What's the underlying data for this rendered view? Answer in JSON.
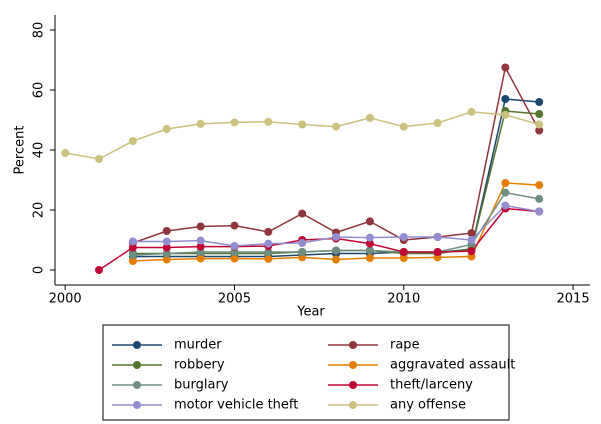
{
  "chart_data": {
    "type": "line",
    "x_label": "Year",
    "y_label": "Percent",
    "x": [
      2000,
      2001,
      2002,
      2003,
      2004,
      2005,
      2006,
      2007,
      2008,
      2009,
      2010,
      2011,
      2012,
      2013,
      2014
    ],
    "xlim": [
      1999.7,
      2015.5
    ],
    "xticks": [
      2000,
      2005,
      2010,
      2015
    ],
    "ylim": [
      -5,
      85
    ],
    "yticks": [
      0,
      20,
      40,
      60,
      80
    ],
    "grid": false,
    "legend": "bottom",
    "series": [
      {
        "name": "murder",
        "color": "#1a476f",
        "values": [
          null,
          null,
          4.5,
          4.5,
          4.5,
          4.5,
          4.5,
          5,
          5.5,
          5.5,
          6,
          5.8,
          7,
          57,
          56
        ]
      },
      {
        "name": "rape",
        "color": "#90353b",
        "values": [
          null,
          null,
          9,
          13,
          14.5,
          14.8,
          12.7,
          18.8,
          12.5,
          16.2,
          10,
          11,
          12.3,
          67.5,
          46.5
        ]
      },
      {
        "name": "robbery",
        "color": "#55752f",
        "values": [
          null,
          null,
          5.5,
          5.5,
          5.5,
          5.5,
          5.5,
          6,
          6.5,
          6.5,
          5.5,
          5.5,
          7,
          53,
          52
        ]
      },
      {
        "name": "aggravated assault",
        "color": "#e37e00",
        "values": [
          null,
          null,
          3,
          3.5,
          3.8,
          3.8,
          3.7,
          4.2,
          3.5,
          4,
          4,
          4.2,
          4.5,
          29,
          28.3
        ]
      },
      {
        "name": "burglary",
        "color": "#6e8e84",
        "values": [
          null,
          null,
          5,
          5.5,
          6,
          6,
          6,
          6,
          6.5,
          6.5,
          6,
          6,
          8.5,
          25.8,
          23.7
        ]
      },
      {
        "name": "theft/larceny",
        "color": "#c10534",
        "values": [
          null,
          0,
          7.5,
          7.5,
          7.8,
          7.8,
          8,
          10,
          10.5,
          8.8,
          6,
          6,
          6.3,
          20.5,
          19.5
        ]
      },
      {
        "name": "motor vehicle theft",
        "color": "#938dd2",
        "values": [
          null,
          null,
          9.5,
          9.5,
          9.8,
          8,
          8.8,
          9,
          11,
          10.8,
          11,
          11,
          10,
          21.5,
          19.5
        ]
      },
      {
        "name": "any offense",
        "color": "#cac27e",
        "values": [
          39,
          37,
          43,
          47,
          48.7,
          49.2,
          49.4,
          48.5,
          47.8,
          50.7,
          47.8,
          49,
          52.7,
          51.7,
          48.5
        ]
      }
    ]
  }
}
